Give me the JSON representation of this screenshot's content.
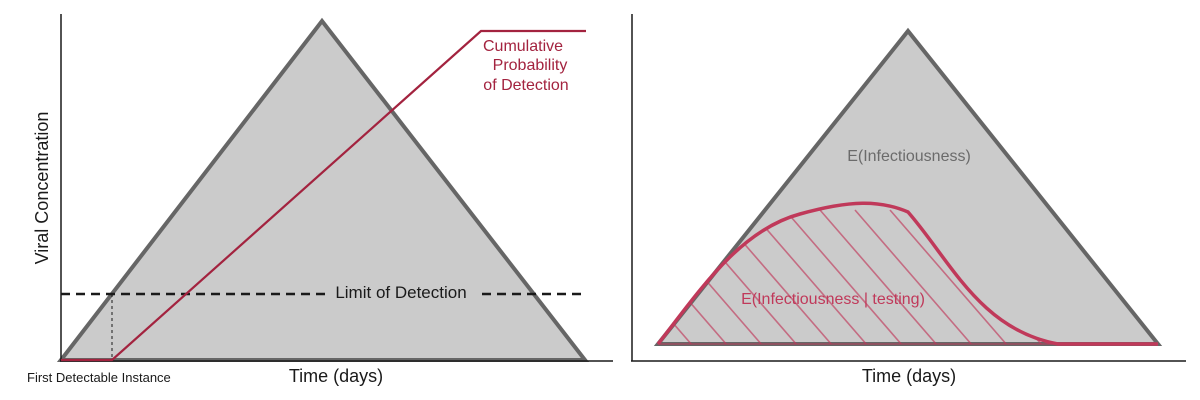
{
  "left_panel": {
    "y_axis_label": "Viral Concentration",
    "x_axis_label": "Time (days)",
    "limit_of_detection_label": "Limit of Detection",
    "first_detectable_label": "First Detectable Instance",
    "cumulative_label_lines": [
      "Cumulative",
      "Probability",
      "of Detection"
    ]
  },
  "right_panel": {
    "x_axis_label": "Time (days)",
    "expected_infectiousness_label": "E(Infectiousness)",
    "conditional_infectiousness_label": "E(Infectiousness | testing)"
  },
  "colors": {
    "triangle_fill": "#cbcbcb",
    "triangle_stroke": "#666666",
    "axis": "#1a1a1a",
    "detection_line": "#a3233f",
    "infectiousness_testing": "#c0395a",
    "gray_text": "#6b6b6b"
  }
}
